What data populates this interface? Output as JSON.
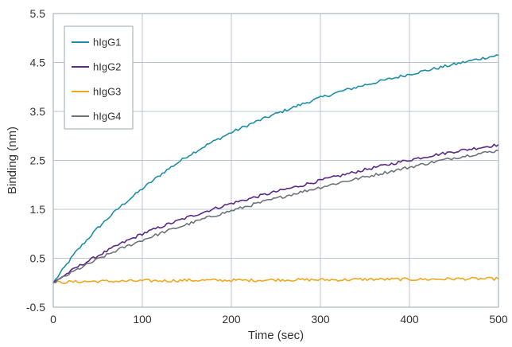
{
  "chart_data": {
    "type": "line",
    "title": "",
    "xlabel": "Time (sec)",
    "ylabel": "Binding (nm)",
    "xlim": [
      0,
      500
    ],
    "ylim": [
      -0.5,
      5.5
    ],
    "xticks": [
      0,
      100,
      200,
      300,
      400,
      500
    ],
    "yticks": [
      -0.5,
      0.5,
      1.5,
      2.5,
      3.5,
      4.5,
      5.5
    ],
    "ytick_labels": [
      "-0.5",
      "0.5",
      "1.5",
      "2.5",
      "3.5",
      "4.5",
      "5.5"
    ],
    "grid": true,
    "legend": "top-left",
    "x": [
      0,
      25,
      50,
      75,
      100,
      125,
      150,
      175,
      200,
      225,
      250,
      275,
      300,
      325,
      350,
      375,
      400,
      425,
      450,
      475,
      500
    ],
    "series": [
      {
        "name": "hIgG1",
        "color": "#1f8fa6",
        "values": [
          0.0,
          0.62,
          1.12,
          1.55,
          1.92,
          2.27,
          2.58,
          2.84,
          3.07,
          3.27,
          3.45,
          3.62,
          3.78,
          3.92,
          4.04,
          4.15,
          4.26,
          4.36,
          4.46,
          4.56,
          4.65
        ]
      },
      {
        "name": "hIgG2",
        "color": "#5b2a86",
        "values": [
          0.0,
          0.3,
          0.55,
          0.79,
          1.0,
          1.17,
          1.33,
          1.48,
          1.62,
          1.74,
          1.86,
          1.97,
          2.09,
          2.2,
          2.31,
          2.41,
          2.51,
          2.6,
          2.68,
          2.75,
          2.82
        ]
      },
      {
        "name": "hIgG3",
        "color": "#f0a81e",
        "values": [
          0.0,
          0.02,
          0.03,
          0.03,
          0.04,
          0.04,
          0.05,
          0.05,
          0.05,
          0.05,
          0.06,
          0.06,
          0.06,
          0.06,
          0.07,
          0.07,
          0.07,
          0.07,
          0.08,
          0.08,
          0.08
        ]
      },
      {
        "name": "hIgG4",
        "color": "#6e747a",
        "values": [
          0.0,
          0.25,
          0.48,
          0.69,
          0.87,
          1.04,
          1.19,
          1.34,
          1.47,
          1.6,
          1.72,
          1.84,
          1.95,
          2.06,
          2.16,
          2.26,
          2.36,
          2.46,
          2.55,
          2.63,
          2.7
        ]
      }
    ]
  }
}
